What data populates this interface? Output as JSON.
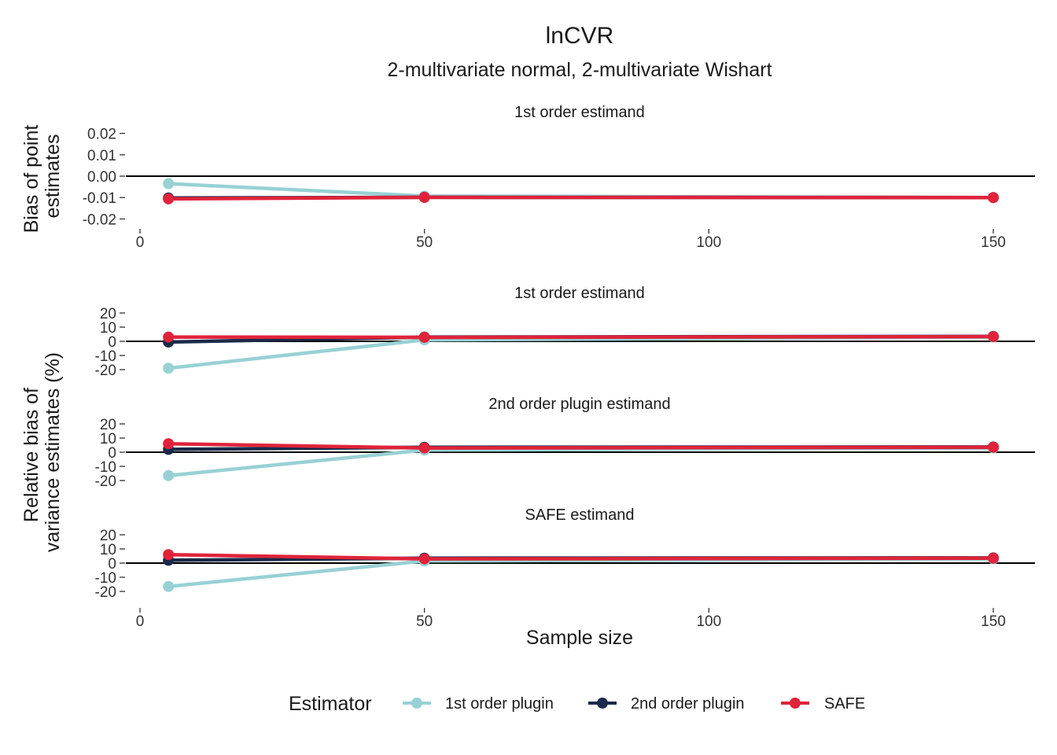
{
  "title": "lnCVR",
  "subtitle": "2-multivariate normal, 2-multivariate Wishart",
  "xlabel": "Sample size",
  "ylabel_top": [
    "Bias of point",
    "estimates"
  ],
  "ylabel_bottom": [
    "Relative bias of",
    "variance estimates (%)"
  ],
  "legend": {
    "title": "Estimator",
    "items": [
      {
        "label": "1st order plugin",
        "color": "#98D1D4"
      },
      {
        "label": "2nd order plugin",
        "color": "#1A2A4A"
      },
      {
        "label": "SAFE",
        "color": "#E0233A"
      }
    ]
  },
  "chart_data": [
    {
      "type": "line",
      "strip": "1st order estimand",
      "ylim": [
        -0.025,
        0.025
      ],
      "yticks": [
        -0.02,
        -0.01,
        0.0,
        0.01,
        0.02
      ],
      "ytick_labels": [
        "-0.02",
        "-0.01",
        "0.00",
        "0.01",
        "0.02"
      ],
      "xlim": [
        0,
        150
      ],
      "xticks": [
        0,
        50,
        100,
        150
      ],
      "x": [
        5,
        50,
        150
      ],
      "series": [
        {
          "name": "1st order plugin",
          "values": [
            -0.0035,
            -0.0093,
            -0.01
          ]
        },
        {
          "name": "2nd order plugin",
          "values": [
            -0.0102,
            -0.0099,
            -0.01
          ]
        },
        {
          "name": "SAFE",
          "values": [
            -0.0106,
            -0.0099,
            -0.01
          ]
        }
      ]
    },
    {
      "type": "line",
      "strip": "1st order estimand",
      "ylim": [
        -23,
        23
      ],
      "yticks": [
        -20,
        -10,
        0,
        10,
        20
      ],
      "ytick_labels": [
        "-20",
        "-10",
        "0",
        "10",
        "20"
      ],
      "xlim": [
        0,
        150
      ],
      "x": [
        5,
        50,
        150
      ],
      "series": [
        {
          "name": "1st order plugin",
          "values": [
            -19,
            1.0,
            3.0
          ]
        },
        {
          "name": "2nd order plugin",
          "values": [
            -0.5,
            3.0,
            3.5
          ]
        },
        {
          "name": "SAFE",
          "values": [
            3.0,
            2.8,
            3.3
          ]
        }
      ]
    },
    {
      "type": "line",
      "strip": "2nd order plugin estimand",
      "ylim": [
        -23,
        23
      ],
      "yticks": [
        -20,
        -10,
        0,
        10,
        20
      ],
      "ytick_labels": [
        "-20",
        "-10",
        "0",
        "10",
        "20"
      ],
      "xlim": [
        0,
        150
      ],
      "x": [
        5,
        50,
        150
      ],
      "series": [
        {
          "name": "1st order plugin",
          "values": [
            -16.5,
            1.5,
            3.0
          ]
        },
        {
          "name": "2nd order plugin",
          "values": [
            2.0,
            3.5,
            3.7
          ]
        },
        {
          "name": "SAFE",
          "values": [
            6.0,
            3.0,
            3.5
          ]
        }
      ]
    },
    {
      "type": "line",
      "strip": "SAFE estimand",
      "ylim": [
        -23,
        23
      ],
      "yticks": [
        -20,
        -10,
        0,
        10,
        20
      ],
      "ytick_labels": [
        "-20",
        "-10",
        "0",
        "10",
        "20"
      ],
      "xlim": [
        0,
        150
      ],
      "xticks": [
        0,
        50,
        100,
        150
      ],
      "x": [
        5,
        50,
        150
      ],
      "series": [
        {
          "name": "1st order plugin",
          "values": [
            -16.5,
            1.5,
            3.0
          ]
        },
        {
          "name": "2nd order plugin",
          "values": [
            2.0,
            3.5,
            3.7
          ]
        },
        {
          "name": "SAFE",
          "values": [
            6.0,
            3.0,
            3.5
          ]
        }
      ]
    }
  ]
}
